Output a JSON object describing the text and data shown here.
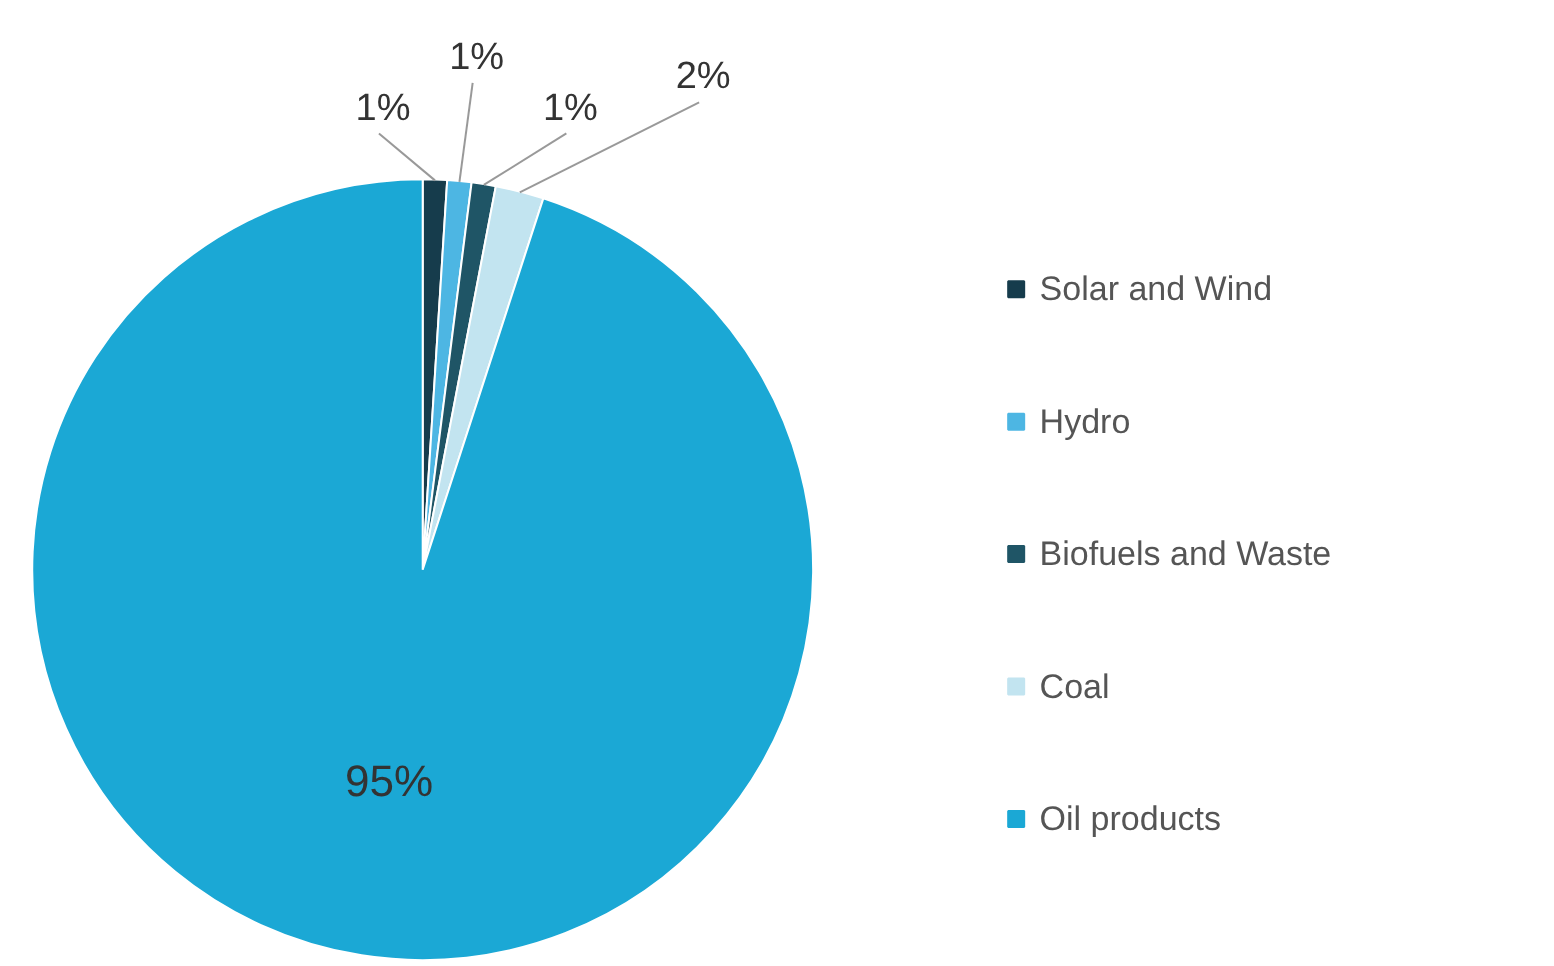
{
  "chart_data": {
    "type": "pie",
    "categories": [
      "Solar and Wind",
      "Hydro",
      "Biofuels and Waste",
      "Coal",
      "Oil products"
    ],
    "values": [
      1,
      1,
      1,
      2,
      95
    ],
    "colors": [
      "#163c4c",
      "#4db6e3",
      "#1f5566",
      "#c2e4f0",
      "#1ba8d5"
    ],
    "value_labels": [
      "1%",
      "1%",
      "1%",
      "2%",
      "95%"
    ],
    "legend": "right"
  }
}
